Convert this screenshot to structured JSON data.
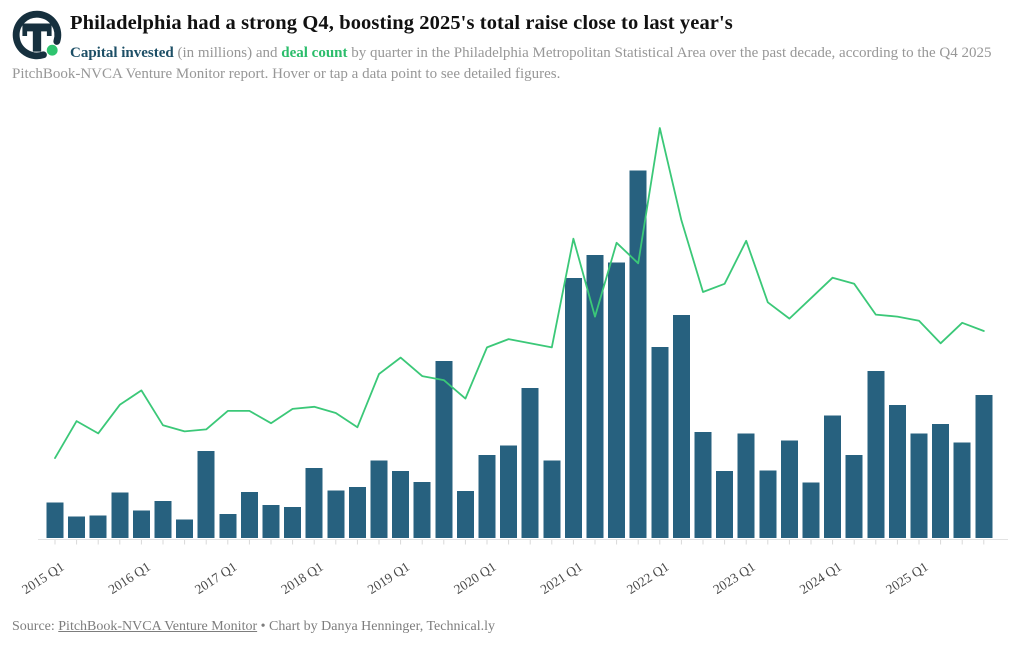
{
  "header": {
    "title": "Philadelphia had a strong Q4, boosting 2025's total raise close to last year's",
    "subtitle": {
      "bold_blue": "Capital invested",
      "mid1": " (in millions) and ",
      "bold_green": "deal count",
      "rest": " by quarter in the Philadelphia Metropolitan Statistical Area over the past decade, according to the Q4 2025 PitchBook-NVCA Venture Monitor report. Hover or tap a data point to see detailed figures."
    },
    "logo": {
      "name": "Technical.ly logo",
      "ring_color": "#16303e",
      "dot_color": "#2ec46f"
    }
  },
  "chart_data": {
    "type": "bar+line",
    "title": "Capital invested and deal count by quarter, Philadelphia MSA",
    "categories": [
      "2015 Q1",
      "2015 Q2",
      "2015 Q3",
      "2015 Q4",
      "2016 Q1",
      "2016 Q2",
      "2016 Q3",
      "2016 Q4",
      "2017 Q1",
      "2017 Q2",
      "2017 Q3",
      "2017 Q4",
      "2018 Q1",
      "2018 Q2",
      "2018 Q3",
      "2018 Q4",
      "2019 Q1",
      "2019 Q2",
      "2019 Q3",
      "2019 Q4",
      "2020 Q1",
      "2020 Q2",
      "2020 Q3",
      "2020 Q4",
      "2021 Q1",
      "2021 Q2",
      "2021 Q3",
      "2021 Q4",
      "2022 Q1",
      "2022 Q2",
      "2022 Q3",
      "2022 Q4",
      "2023 Q1",
      "2023 Q2",
      "2023 Q3",
      "2023 Q4",
      "2024 Q1",
      "2024 Q2",
      "2024 Q3",
      "2024 Q4",
      "2025 Q1",
      "2025 Q2",
      "2025 Q3",
      "2025 Q4"
    ],
    "x_tick_labels": [
      "2015 Q1",
      "2016 Q1",
      "2017 Q1",
      "2018 Q1",
      "2019 Q1",
      "2020 Q1",
      "2021 Q1",
      "2022 Q1",
      "2023 Q1",
      "2024 Q1",
      "2025 Q1"
    ],
    "series": [
      {
        "name": "Capital invested",
        "type": "bar",
        "unit": "millions USD",
        "color": "#27617f",
        "values": [
          230,
          140,
          145,
          295,
          180,
          240,
          120,
          565,
          155,
          300,
          215,
          200,
          455,
          310,
          330,
          505,
          435,
          365,
          1150,
          305,
          540,
          600,
          975,
          505,
          1690,
          1840,
          1790,
          2390,
          1240,
          1450,
          690,
          435,
          680,
          440,
          635,
          360,
          795,
          540,
          1085,
          865,
          680,
          740,
          620,
          930
        ]
      },
      {
        "name": "Deal count",
        "type": "line",
        "unit": "deals",
        "color": "#3bc878",
        "values": [
          39,
          57,
          51,
          65,
          72,
          55,
          52,
          53,
          62,
          62,
          56,
          63,
          64,
          61,
          54,
          80,
          88,
          79,
          77,
          68,
          93,
          97,
          95,
          93,
          146,
          108,
          144,
          134,
          200,
          155,
          120,
          124,
          145,
          115,
          107,
          117,
          127,
          124,
          109,
          108,
          106,
          95,
          105,
          101
        ]
      }
    ],
    "ylim_capital": [
      0,
      2600
    ],
    "ylim_deals": [
      0,
      200
    ],
    "grid": false,
    "legend": "none (series named in subtitle text)",
    "axis_color": "#e2e2e2",
    "tick_label_color": "#4a4a4a"
  },
  "footer": {
    "prefix": "Source: ",
    "link": "PitchBook-NVCA Venture Monitor",
    "suffix": " • Chart by Danya Henninger, Technical.ly"
  }
}
